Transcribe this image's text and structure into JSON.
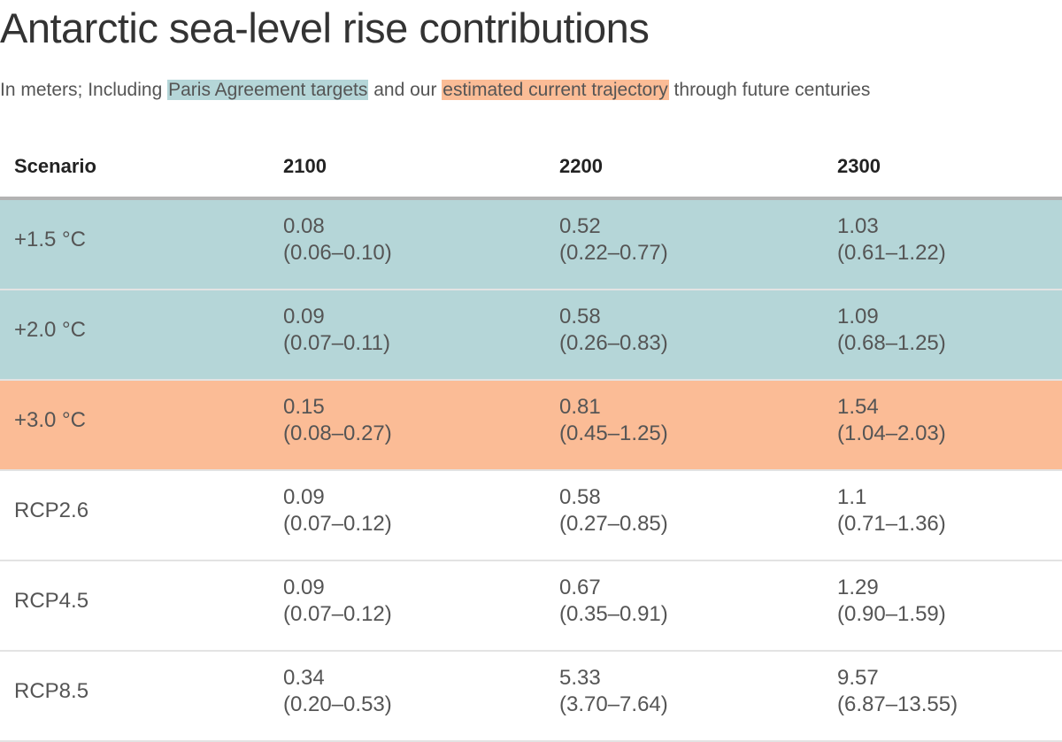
{
  "title": "Antarctic sea-level rise contributions",
  "subtitle": {
    "prefix": "In meters; Including ",
    "paris": "Paris Agreement targets",
    "middle": " and our ",
    "trajectory": "estimated current trajectory",
    "suffix": " through future centuries"
  },
  "colors": {
    "paris": "#b5d6d8",
    "trajectory": "#fbbc96",
    "plain": "#ffffff",
    "divider": "#e3e3e3",
    "header_rule": "#b3b3b3"
  },
  "chart_data": {
    "type": "table",
    "columns": [
      "Scenario",
      "2100",
      "2200",
      "2300"
    ],
    "rows": [
      {
        "scenario": "+1.5 °C",
        "group": "paris",
        "values": [
          {
            "median": "0.08",
            "range": "(0.06–0.10)"
          },
          {
            "median": "0.52",
            "range": "(0.22–0.77)"
          },
          {
            "median": "1.03",
            "range": "(0.61–1.22)"
          }
        ]
      },
      {
        "scenario": "+2.0 °C",
        "group": "paris",
        "values": [
          {
            "median": "0.09",
            "range": "(0.07–0.11)"
          },
          {
            "median": "0.58",
            "range": "(0.26–0.83)"
          },
          {
            "median": "1.09",
            "range": "(0.68–1.25)"
          }
        ]
      },
      {
        "scenario": "+3.0 °C",
        "group": "trajectory",
        "values": [
          {
            "median": "0.15",
            "range": "(0.08–0.27)"
          },
          {
            "median": "0.81",
            "range": "(0.45–1.25)"
          },
          {
            "median": "1.54",
            "range": "(1.04–2.03)"
          }
        ]
      },
      {
        "scenario": "RCP2.6",
        "group": "plain",
        "values": [
          {
            "median": "0.09",
            "range": "(0.07–0.12)"
          },
          {
            "median": "0.58",
            "range": "(0.27–0.85)"
          },
          {
            "median": "1.1",
            "range": "(0.71–1.36)"
          }
        ]
      },
      {
        "scenario": "RCP4.5",
        "group": "plain",
        "values": [
          {
            "median": "0.09",
            "range": "(0.07–0.12)"
          },
          {
            "median": "0.67",
            "range": "(0.35–0.91)"
          },
          {
            "median": "1.29",
            "range": "(0.90–1.59)"
          }
        ]
      },
      {
        "scenario": "RCP8.5",
        "group": "plain",
        "values": [
          {
            "median": "0.34",
            "range": "(0.20–0.53)"
          },
          {
            "median": "5.33",
            "range": "(3.70–7.64)"
          },
          {
            "median": "9.57",
            "range": "(6.87–13.55)"
          }
        ]
      }
    ]
  }
}
